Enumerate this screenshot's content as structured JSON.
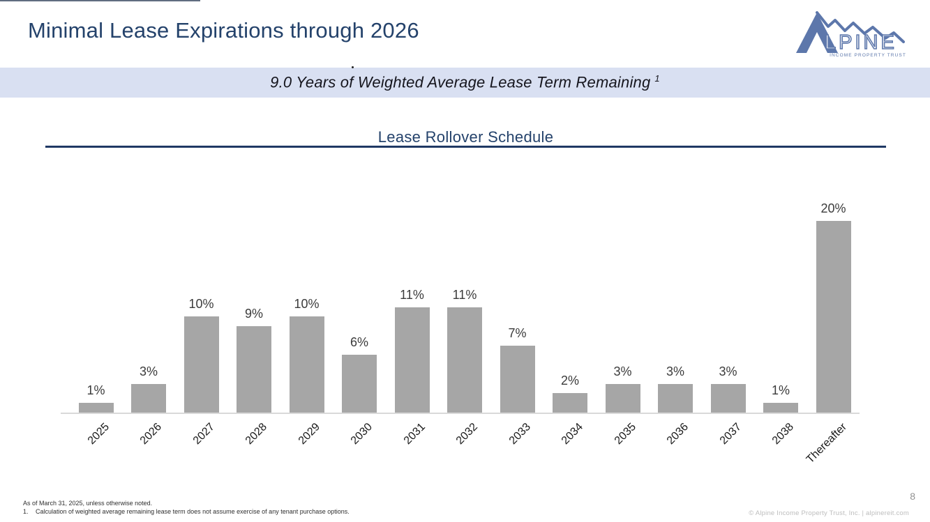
{
  "header": {
    "title": "Minimal Lease Expirations through 2026"
  },
  "logo": {
    "alt": "Alpine Income Property Trust logo",
    "wordmark_rest": "LPINE",
    "tagline": "INCOME PROPERTY TRUST"
  },
  "banner": {
    "text": "9.0 Years of Weighted Average Lease Term Remaining",
    "superscript": "1"
  },
  "chart_data": {
    "type": "bar",
    "title": "Lease Rollover Schedule",
    "categories": [
      "2025",
      "2026",
      "2027",
      "2028",
      "2029",
      "2030",
      "2031",
      "2032",
      "2033",
      "2034",
      "2035",
      "2036",
      "2037",
      "2038",
      "Thereafter"
    ],
    "values": [
      1,
      3,
      10,
      9,
      10,
      6,
      11,
      11,
      7,
      2,
      3,
      3,
      3,
      1,
      20
    ],
    "value_labels": [
      "1%",
      "3%",
      "10%",
      "9%",
      "10%",
      "6%",
      "11%",
      "11%",
      "7%",
      "2%",
      "3%",
      "3%",
      "3%",
      "1%",
      "20%"
    ],
    "unit": "%",
    "xlabel": "",
    "ylabel": "",
    "ylim": [
      0,
      22
    ],
    "grid": false,
    "legend": false,
    "bar_color": "#a6a6a6",
    "data_label_color": "#3b3b3b",
    "axis_line_color": "#d9d9d9"
  },
  "footnotes": {
    "line1": "As of March 31, 2025, unless otherwise noted.",
    "line2_number": "1.",
    "line2_text": "Calculation of weighted average remaining lease term does not assume exercise of any tenant purchase options."
  },
  "footer": {
    "page_number": "8",
    "copyright": "© Alpine Income Property Trust, Inc.  |  alpinereit.com"
  },
  "colors": {
    "accent_navy": "#1f3864",
    "title_navy": "#24426b",
    "banner_bg": "#d9e0f2",
    "bar_gray": "#a6a6a6",
    "logo_blue": "#5d77ab"
  }
}
